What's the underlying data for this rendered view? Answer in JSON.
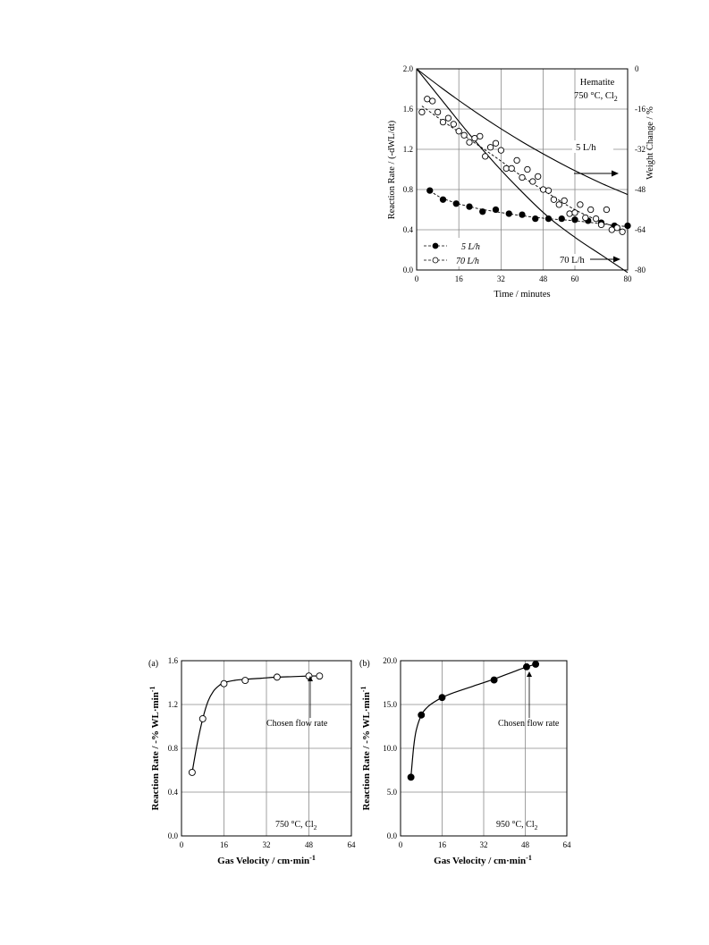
{
  "figure1": {
    "chart_data": {
      "type": "scatter",
      "annotation_title": "Hematite",
      "annotation_condition": "750 °C, Cl",
      "annotation_condition_sub": "2",
      "xlabel": "Time / minutes",
      "ylabel": "Reaction Rate / (-dWL/dt)",
      "y2label": "Weight Change / %",
      "xlim": [
        0,
        80
      ],
      "ylim": [
        0,
        2.0
      ],
      "y2lim": [
        -80,
        0
      ],
      "x_ticks": [
        "0",
        "16",
        "32",
        "48",
        "60",
        "80"
      ],
      "x_tick_values": [
        0,
        16,
        32,
        48,
        60,
        80
      ],
      "y_ticks": [
        "0.0",
        "0.4",
        "0.8",
        "1.2",
        "1.6",
        "2.0"
      ],
      "y_tick_values": [
        0,
        0.4,
        0.8,
        1.2,
        1.6,
        2.0
      ],
      "y2_ticks": [
        "0",
        "-16",
        "-32",
        "-48",
        "-64",
        "-80"
      ],
      "y2_tick_values": [
        0,
        -16,
        -32,
        -48,
        -64,
        -80
      ],
      "grid": true,
      "legend_position": "bottom-left",
      "legend": [
        {
          "label": "5 L/h",
          "marker": "filled"
        },
        {
          "label": "70 L/h",
          "marker": "open"
        }
      ],
      "curve_labels": [
        "5 L/h",
        "70 L/h"
      ],
      "rate_series": [
        {
          "name": "5 L/h",
          "marker": "filled",
          "x": [
            5,
            10,
            15,
            20,
            25,
            30,
            35,
            40,
            45,
            50,
            55,
            60,
            65,
            70,
            75,
            80
          ],
          "y": [
            0.79,
            0.7,
            0.66,
            0.63,
            0.58,
            0.6,
            0.56,
            0.55,
            0.51,
            0.51,
            0.51,
            0.5,
            0.49,
            0.47,
            0.44,
            0.44
          ],
          "fit_x": [
            5,
            10,
            20,
            30,
            40,
            50,
            60,
            70,
            80
          ],
          "fit_y": [
            0.79,
            0.71,
            0.63,
            0.58,
            0.54,
            0.51,
            0.49,
            0.46,
            0.43
          ]
        },
        {
          "name": "70 L/h",
          "marker": "open",
          "x": [
            2,
            4,
            6,
            8,
            10,
            12,
            14,
            16,
            18,
            20,
            22,
            24,
            26,
            28,
            30,
            32,
            34,
            36,
            38,
            40,
            42,
            44,
            46,
            48,
            50,
            52,
            54,
            56,
            58,
            60,
            62,
            64,
            66,
            68,
            70,
            72,
            74,
            76,
            78
          ],
          "y": [
            1.57,
            1.7,
            1.68,
            1.57,
            1.47,
            1.51,
            1.45,
            1.38,
            1.34,
            1.27,
            1.31,
            1.33,
            1.13,
            1.22,
            1.26,
            1.19,
            1.01,
            1.01,
            1.09,
            0.92,
            1.0,
            0.88,
            0.93,
            0.8,
            0.79,
            0.7,
            0.65,
            0.69,
            0.56,
            0.57,
            0.65,
            0.52,
            0.6,
            0.51,
            0.45,
            0.6,
            0.4,
            0.42,
            0.38
          ],
          "fit_x": [
            2,
            10,
            20,
            30,
            40,
            50,
            60,
            70,
            80
          ],
          "fit_y": [
            1.63,
            1.48,
            1.3,
            1.12,
            0.93,
            0.76,
            0.6,
            0.48,
            0.38
          ]
        }
      ],
      "weight_series": [
        {
          "name": "5 L/h",
          "x": [
            0,
            10,
            20,
            30,
            40,
            50,
            60,
            70,
            80
          ],
          "y": [
            0,
            -8,
            -15.5,
            -22.5,
            -29,
            -35,
            -40.5,
            -45.5,
            -50
          ]
        },
        {
          "name": "70 L/h",
          "x": [
            0,
            10,
            20,
            30,
            40,
            50,
            60,
            70,
            80
          ],
          "y": [
            0,
            -13,
            -26,
            -38,
            -49,
            -59,
            -67,
            -74,
            -81
          ]
        }
      ]
    }
  },
  "figure2a": {
    "panel_label": "(a)",
    "chart_data": {
      "type": "scatter",
      "xlabel": "Gas Velocity / cm·min",
      "xlabel_sup": "-1",
      "ylabel": "Reaction Rate / -% WL·min",
      "ylabel_sup": "-1",
      "annotation": "Chosen flow rate",
      "condition": "750 °C, Cl",
      "condition_sub": "2",
      "xlim": [
        0,
        64
      ],
      "ylim": [
        0,
        1.6
      ],
      "x_ticks": [
        "0",
        "16",
        "32",
        "48",
        "64"
      ],
      "x_tick_values": [
        0,
        16,
        32,
        48,
        64
      ],
      "y_ticks": [
        "0.0",
        "0.4",
        "0.8",
        "1.2",
        "1.6"
      ],
      "y_tick_values": [
        0,
        0.4,
        0.8,
        1.2,
        1.6
      ],
      "grid": true,
      "chosen_x": 48.5,
      "points": {
        "x": [
          4,
          8,
          16,
          24,
          36,
          48,
          52
        ],
        "y": [
          0.58,
          1.07,
          1.39,
          1.42,
          1.45,
          1.46,
          1.46
        ]
      },
      "fit": {
        "x": [
          4,
          6,
          8,
          10,
          12,
          14,
          16,
          20,
          24,
          30,
          36,
          42,
          48,
          52
        ],
        "y": [
          0.58,
          0.85,
          1.07,
          1.23,
          1.32,
          1.37,
          1.4,
          1.42,
          1.43,
          1.44,
          1.45,
          1.455,
          1.46,
          1.46
        ]
      }
    }
  },
  "figure2b": {
    "panel_label": "(b)",
    "chart_data": {
      "type": "scatter",
      "xlabel": "Gas Velocity / cm·min",
      "xlabel_sup": "-1",
      "ylabel": "Reaction Rate / -% WL·min",
      "ylabel_sup": "-1",
      "annotation": "Chosen flow rate",
      "condition": "950 °C, Cl",
      "condition_sub": "2",
      "xlim": [
        0,
        64
      ],
      "ylim": [
        0,
        20.0
      ],
      "x_ticks": [
        "0",
        "16",
        "32",
        "48",
        "64"
      ],
      "x_tick_values": [
        0,
        16,
        32,
        48,
        64
      ],
      "y_ticks": [
        "0.0",
        "5.0",
        "10.0",
        "15.0",
        "20.0"
      ],
      "y_tick_values": [
        0,
        5,
        10,
        15,
        20
      ],
      "grid": true,
      "chosen_x": 48.5,
      "points": {
        "x": [
          4,
          8,
          16,
          36,
          48.5,
          52
        ],
        "y": [
          6.7,
          13.8,
          15.8,
          17.8,
          19.3,
          19.6
        ]
      },
      "fit": {
        "x": [
          4,
          5,
          6,
          8,
          10,
          12,
          16,
          20,
          28,
          36,
          44,
          48.5,
          52
        ],
        "y": [
          6.7,
          10.0,
          12.0,
          13.8,
          14.6,
          15.1,
          15.8,
          16.3,
          17.1,
          17.9,
          18.8,
          19.3,
          19.6
        ]
      }
    }
  }
}
